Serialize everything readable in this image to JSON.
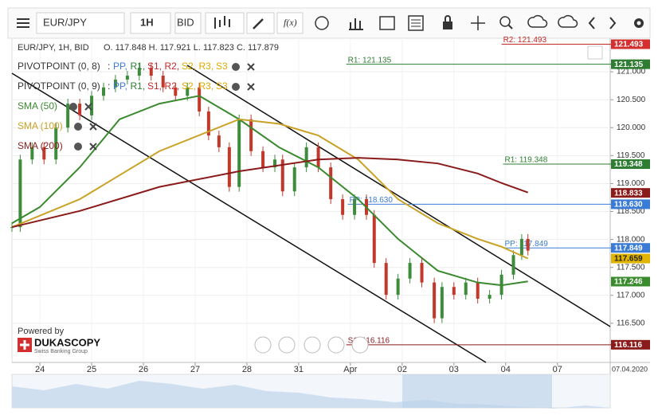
{
  "toolbar": {
    "instrument": "EUR/JPY",
    "period": "1H",
    "side": "BID",
    "fx": "f(x)"
  },
  "info": {
    "text": "EUR/JPY, 1H, BID",
    "ohlc": "O. 117.848 H. 117.921 L. 117.823 C. 117.879"
  },
  "indicators": [
    {
      "label": "PIVOTPOINT (0, 8)",
      "prefix": ":",
      "parts": [
        {
          "text": "PP,",
          "color": "#3a7bd5"
        },
        {
          "text": "R1,",
          "color": "#2e7d32"
        },
        {
          "text": "S1,",
          "color": "#c62828"
        },
        {
          "text": "R2,",
          "color": "#c62828"
        },
        {
          "text": "S2,",
          "color": "#e0a800"
        },
        {
          "text": "R3,",
          "color": "#e0a800"
        },
        {
          "text": "S3",
          "color": "#e0a800"
        }
      ]
    },
    {
      "label": "PIVOTPOINT (0, 9)",
      "prefix": ":",
      "parts": [
        {
          "text": "PP,",
          "color": "#3a7bd5"
        },
        {
          "text": "R1,",
          "color": "#2e7d32"
        },
        {
          "text": "S1,",
          "color": "#c62828"
        },
        {
          "text": "R2,",
          "color": "#c62828"
        },
        {
          "text": "S2,",
          "color": "#e0a800"
        },
        {
          "text": "R3,",
          "color": "#e0a800"
        },
        {
          "text": "S3",
          "color": "#e0a800"
        }
      ]
    }
  ],
  "logo": {
    "powered": "Powered by",
    "name": "DUKASCOPY",
    "tagline": "Swiss Banking Group"
  },
  "chart": {
    "xlim": [
      -0.54,
      11.02
    ],
    "ylim": [
      115.8,
      121.6
    ],
    "xticks": [
      {
        "value": 0,
        "label": "24"
      },
      {
        "value": 1,
        "label": "25"
      },
      {
        "value": 2,
        "label": "26"
      },
      {
        "value": 3,
        "label": "27"
      },
      {
        "value": 4,
        "label": "28"
      },
      {
        "value": 5,
        "label": "31"
      },
      {
        "value": 6,
        "label": "Apr"
      },
      {
        "value": 7,
        "label": "02"
      },
      {
        "value": 8,
        "label": "03"
      },
      {
        "value": 9,
        "label": "04"
      },
      {
        "value": 10,
        "label": "07"
      }
    ],
    "date_tag": "07.04.2020",
    "yticks": [
      {
        "value": 116.5,
        "label": "116.500"
      },
      {
        "value": 117,
        "label": "117.000"
      },
      {
        "value": 117.5,
        "label": "117.500"
      },
      {
        "value": 118,
        "label": "118.000"
      },
      {
        "value": 118.5,
        "label": "118.500"
      },
      {
        "value": 119,
        "label": "119.000"
      },
      {
        "value": 119.5,
        "label": "119.500"
      },
      {
        "value": 120,
        "label": "120.000"
      },
      {
        "value": 120.5,
        "label": "120.500"
      },
      {
        "value": 121,
        "label": "121.000"
      }
    ],
    "price": {
      "up_color": "#3c8c3c",
      "down_color": "#c0392b",
      "x": [
        -0.54,
        -0.38,
        -0.15,
        0.08,
        0.31,
        0.54,
        0.77,
        1.0,
        1.23,
        1.46,
        1.69,
        1.92,
        2.15,
        2.38,
        2.62,
        2.85,
        3.08,
        3.26,
        3.46,
        3.66,
        3.85,
        4.08,
        4.31,
        4.54,
        4.69,
        4.92,
        5.15,
        5.38,
        5.62,
        5.85,
        6.08,
        6.31,
        6.46,
        6.69,
        6.92,
        7.15,
        7.38,
        7.62,
        7.77,
        8.0,
        8.23,
        8.46,
        8.69,
        8.92,
        9.15,
        9.31,
        9.43
      ],
      "values": [
        118.22,
        119.43,
        119.65,
        119.43,
        120.0,
        120.43,
        120.22,
        120.57,
        120.72,
        120.86,
        120.93,
        121.07,
        120.93,
        120.72,
        120.57,
        120.72,
        120.29,
        119.86,
        119.65,
        118.94,
        120.15,
        119.58,
        119.29,
        119.43,
        118.86,
        119.29,
        119.65,
        119.29,
        118.72,
        118.44,
        118.72,
        118.44,
        117.58,
        117.01,
        117.3,
        117.58,
        117.23,
        116.59,
        117.15,
        117.01,
        117.23,
        116.94,
        117.01,
        117.37,
        117.72,
        118.01,
        117.8
      ]
    },
    "sma": [
      {
        "name": "SMA (50)",
        "color": "#3a8a2e",
        "x": [
          -0.54,
          0,
          0.77,
          1.54,
          2.31,
          3.08,
          3.85,
          4.62,
          5.38,
          6.15,
          6.92,
          7.69,
          8.46,
          8.92,
          9.43
        ],
        "values": [
          118.29,
          118.58,
          119.29,
          120.15,
          120.43,
          120.57,
          120.15,
          119.65,
          119.29,
          118.72,
          118.01,
          117.44,
          117.23,
          117.18,
          117.25
        ]
      },
      {
        "name": "SMA (100)",
        "color": "#c9a227",
        "x": [
          -0.54,
          0.77,
          2.31,
          3.85,
          4.62,
          5.38,
          6.15,
          6.92,
          7.69,
          8.46,
          8.92,
          9.43
        ],
        "values": [
          118.22,
          118.72,
          119.58,
          120.15,
          120.07,
          119.86,
          119.43,
          118.72,
          118.29,
          118.01,
          117.87,
          117.66
        ]
      },
      {
        "name": "SMA (200)",
        "color": "#8b1a1a",
        "x": [
          -0.54,
          0.77,
          2.31,
          3.85,
          5.38,
          6.15,
          6.92,
          7.69,
          8.46,
          8.92,
          9.43
        ],
        "values": [
          118.22,
          118.51,
          118.94,
          119.22,
          119.43,
          119.46,
          119.43,
          119.36,
          119.18,
          119.01,
          118.84
        ]
      }
    ],
    "levels": [
      {
        "label": "R2: 121.493",
        "value": 121.493,
        "from": 8.92,
        "color": "#c62828"
      },
      {
        "label": "R1: 121.135",
        "value": 121.135,
        "from": 5.92,
        "color": "#2e7d32"
      },
      {
        "label": "R1: 119.348",
        "value": 119.348,
        "from": 8.95,
        "color": "#2e7d32"
      },
      {
        "label": "PP: 118.630",
        "value": 118.63,
        "from": 5.95,
        "color": "#3a7bd5"
      },
      {
        "label": "PP: 117.849",
        "value": 117.849,
        "from": 8.95,
        "color": "#3a7bd5"
      },
      {
        "label": "S1: 116.116",
        "value": 116.116,
        "from": 5.92,
        "color": "#8b1a1a"
      }
    ],
    "tags": [
      {
        "value": 121.493,
        "label": "121.493",
        "color": "#d32f2f",
        "text_color": "#fff"
      },
      {
        "value": 121.135,
        "label": "121.135",
        "color": "#2e7d32",
        "text_color": "#fff"
      },
      {
        "value": 119.348,
        "label": "119.348",
        "color": "#2e7d32",
        "text_color": "#fff"
      },
      {
        "value": 118.833,
        "label": "118.833",
        "color": "#8b1a1a",
        "text_color": "#fff"
      },
      {
        "value": 118.63,
        "label": "118.630",
        "color": "#3a7bd5",
        "text_color": "#fff"
      },
      {
        "value": 117.849,
        "label": "117.849",
        "color": "#3a7bd5",
        "text_color": "#fff"
      },
      {
        "value": 117.659,
        "label": "117.659",
        "color": "#e0b400",
        "text_color": "#222"
      },
      {
        "value": 117.246,
        "label": "117.246",
        "color": "#3a8a2e",
        "text_color": "#fff"
      },
      {
        "value": 116.116,
        "label": "116.116",
        "color": "#8b1a1a",
        "text_color": "#fff"
      }
    ]
  }
}
